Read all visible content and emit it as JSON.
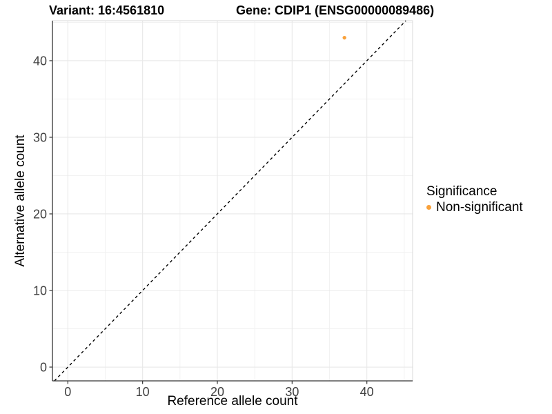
{
  "titles": {
    "variant": "Variant: 16:4561810",
    "gene": "Gene: CDIP1 (ENSG00000089486)"
  },
  "chart_data": {
    "type": "scatter",
    "xlabel": "Reference allele count",
    "ylabel": "Alternative allele count",
    "xlim": [
      -2.06,
      46.12
    ],
    "ylim": [
      -1.8,
      45.22
    ],
    "x_ticks": [
      0,
      10,
      20,
      30,
      40
    ],
    "y_ticks": [
      0,
      10,
      20,
      30,
      40
    ],
    "x_minor_ticks": [
      5,
      15,
      25,
      35,
      45
    ],
    "y_minor_ticks": [
      5,
      15,
      25,
      35,
      45
    ],
    "points": [
      {
        "x": 37,
        "y": 43,
        "significance": "Non-significant"
      }
    ],
    "identity_line": {
      "style": "dashed",
      "slope": 1,
      "intercept": 0
    },
    "legend": {
      "title": "Significance",
      "position": "right",
      "items": [
        {
          "label": "Non-significant",
          "color": "#F9A13B"
        }
      ]
    },
    "grid": true,
    "colors": {
      "point": "#F9A13B",
      "grid_major": "#E8E8E8",
      "grid_minor": "#F1F1F1",
      "panel_border": "#D9D9D9",
      "axis_line": "#333333",
      "tick_mark": "#333333",
      "tick_label": "#404040",
      "dashed_line": "#000000",
      "background": "#FFFFFF"
    }
  }
}
